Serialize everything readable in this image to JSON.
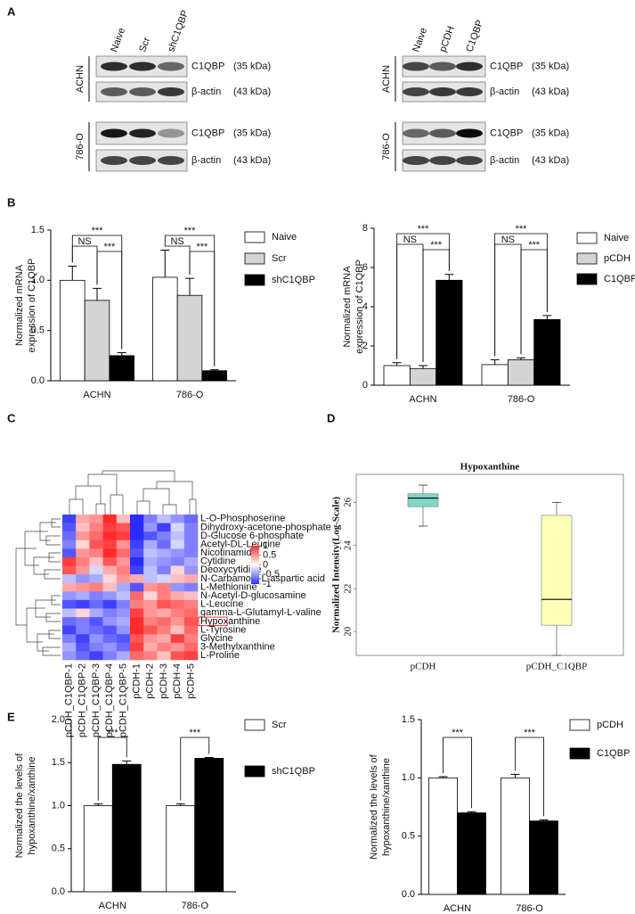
{
  "panel_labels": [
    "A",
    "B",
    "C",
    "D",
    "E"
  ],
  "blots": [
    {
      "lanes": [
        "Naive",
        "Scr",
        "shC1QBP"
      ],
      "rows": [
        {
          "cell_line": "ACHN",
          "proteins": [
            {
              "name": "C1QBP",
              "size": "(35 kDa)"
            },
            {
              "name": "β-actin",
              "size": "(43 kDa)"
            }
          ]
        },
        {
          "cell_line": "786-O",
          "proteins": [
            {
              "name": "C1QBP",
              "size": "(35 kDa)"
            },
            {
              "name": "β-actin",
              "size": "(43 kDa)"
            }
          ]
        }
      ]
    },
    {
      "lanes": [
        "Naive",
        "pCDH",
        "C1QBP"
      ],
      "rows": [
        {
          "cell_line": "ACHN",
          "proteins": [
            {
              "name": "C1QBP",
              "size": "(35 kDa)"
            },
            {
              "name": "β-actin",
              "size": "(43 kDa)"
            }
          ]
        },
        {
          "cell_line": "786-O",
          "proteins": [
            {
              "name": "C1QBP",
              "size": "(35 kDa)"
            },
            {
              "name": "β-actin",
              "size": "(43 kDa)"
            }
          ]
        }
      ]
    }
  ],
  "chart_data": [
    {
      "type": "bar",
      "ylabel": [
        "Normalized  mRNA",
        "expression  of C1QBP"
      ],
      "categories": [
        "ACHN",
        "786-O"
      ],
      "series": [
        {
          "name": "Naive",
          "color": "#ffffff",
          "values": [
            1.0,
            1.03
          ],
          "errors": [
            0.14,
            0.27
          ]
        },
        {
          "name": "Scr",
          "color": "#d4d4d4",
          "values": [
            0.8,
            0.85
          ],
          "errors": [
            0.12,
            0.17
          ]
        },
        {
          "name": "shC1QBP",
          "color": "#000000",
          "values": [
            0.25,
            0.1
          ],
          "errors": [
            0.03,
            0.01
          ]
        }
      ],
      "significance": [
        [
          "***",
          "NS",
          "***"
        ],
        [
          "***",
          "NS",
          "***"
        ]
      ],
      "ylim": [
        0,
        1.5
      ],
      "yticks": [
        {
          "value": 0,
          "label": "0.0"
        },
        0.5,
        {
          "value": 1,
          "label": "1.0"
        },
        1.5
      ]
    },
    {
      "type": "bar",
      "ylabel": [
        "Normalized mRNA",
        "expression of C1QBP"
      ],
      "categories": [
        "ACHN",
        "786-O"
      ],
      "series": [
        {
          "name": "Naive",
          "color": "#ffffff",
          "values": [
            1.0,
            1.05
          ],
          "errors": [
            0.15,
            0.25
          ]
        },
        {
          "name": "pCDH",
          "color": "#d4d4d4",
          "values": [
            0.85,
            1.3
          ],
          "errors": [
            0.15,
            0.1
          ]
        },
        {
          "name": "C1QBP",
          "color": "#000000",
          "values": [
            5.35,
            3.35
          ],
          "errors": [
            0.3,
            0.2
          ]
        }
      ],
      "significance": [
        [
          "***",
          "NS",
          "***"
        ],
        [
          "***",
          "NS",
          "***"
        ]
      ],
      "ylim": [
        0,
        8
      ],
      "yticks": [
        0,
        2,
        4,
        6,
        8
      ]
    },
    {
      "type": "heatmap",
      "rows": [
        "L-O-Phosphoserine",
        "Dihydroxy-acetone-phosphate",
        "D-Glucose 6-phosphate",
        "Acetyl-DL-Leucine",
        "Nicotinamide",
        "Cytidine",
        "Deoxycytidine",
        "N-Carbamoyl-L-aspartic acid",
        "L-Methionine",
        "N-Acetyl-D-glucosamine",
        "L-Leucine",
        "gamma-L-Glutamyl-L-valine",
        "Hypoxanthine",
        "L-Tyrosine",
        "Glycine",
        "3-Methylxanthine",
        "L-Proline"
      ],
      "columns": [
        "pCDH_C1QBP-1",
        "pCDH_C1QBP-2",
        "pCDH_C1QBP-3",
        "pCDH_C1QBP-4",
        "pCDH_C1QBP-5",
        "pCDH-1",
        "pCDH-2",
        "pCDH-3",
        "pCDH-4",
        "pCDH-5"
      ],
      "values": [
        [
          -0.9,
          0.4,
          0.5,
          1,
          0.3,
          -1,
          -0.6,
          -0.3,
          -0.5,
          -0.7
        ],
        [
          -0.8,
          0.3,
          0.6,
          0.9,
          0.8,
          -1,
          -0.5,
          -0.9,
          -0.2,
          -0.6
        ],
        [
          -0.7,
          0.5,
          0.7,
          1,
          0.9,
          -1,
          -0.8,
          -0.6,
          -0.3,
          -0.6
        ],
        [
          -0.6,
          0.2,
          0.8,
          0.9,
          0.5,
          -0.9,
          -0.4,
          -0.7,
          -0.2,
          -0.6
        ],
        [
          -0.8,
          0.5,
          0.6,
          1,
          0.7,
          -0.8,
          -0.3,
          -0.4,
          -0.5,
          -0.6
        ],
        [
          0.9,
          0.6,
          0.3,
          0.8,
          0.5,
          -1,
          -0.4,
          -0.5,
          -0.6,
          -0.4
        ],
        [
          0.8,
          0.5,
          -0.2,
          0.4,
          0.6,
          -0.9,
          -0.3,
          -0.6,
          0.2,
          -0.5
        ],
        [
          -0.3,
          -0.5,
          -0.4,
          0.2,
          0.5,
          0.4,
          -0.3,
          -0.2,
          0.3,
          0.4
        ],
        [
          0.4,
          0.5,
          0.6,
          0.3,
          -0.4,
          -0.8,
          0.5,
          0.6,
          -0.5,
          -0.6
        ],
        [
          -0.5,
          -0.4,
          -0.6,
          -0.5,
          -0.3,
          0.7,
          0.2,
          0.6,
          0.4,
          0.3
        ],
        [
          -0.8,
          -0.9,
          -0.7,
          -0.9,
          -0.6,
          0.6,
          0.5,
          0.8,
          0.7,
          0.6
        ],
        [
          -0.3,
          0.2,
          -0.4,
          -0.6,
          -0.5,
          0.9,
          0.5,
          0.4,
          0.6,
          0.7
        ],
        [
          -0.7,
          -0.6,
          -0.8,
          -0.5,
          -0.4,
          1,
          0.6,
          0.7,
          0.5,
          0.8
        ],
        [
          -0.9,
          -0.6,
          -0.7,
          -0.8,
          -0.5,
          1,
          0.8,
          0.6,
          0.3,
          0.7
        ],
        [
          -0.6,
          -0.9,
          -0.5,
          -0.7,
          -0.8,
          0.8,
          0.5,
          0.4,
          0.9,
          0.6
        ],
        [
          -0.4,
          -0.8,
          -0.6,
          -0.5,
          -0.7,
          0.9,
          0.4,
          0.6,
          0.5,
          0.7
        ],
        [
          -0.5,
          -0.7,
          -0.9,
          -0.6,
          -0.4,
          0.7,
          0.6,
          0.3,
          0.8,
          0.9
        ]
      ],
      "clim": [
        -1,
        1
      ],
      "colors": [
        "#2b2bff",
        "#ffffff",
        "#ff2b2b"
      ],
      "colorbar_ticks": [
        -1,
        -0.5,
        0,
        0.5,
        1
      ],
      "highlight_row": 12
    },
    {
      "type": "box",
      "title": "Hypoxanthine",
      "ylabel": "Normalized Intensity(Log-Scale)",
      "categories": [
        "pCDH",
        "pCDH_C1QBP"
      ],
      "colors": [
        "#7fd6c4",
        "#ffffb8"
      ],
      "boxes": [
        {
          "min": 24.9,
          "q1": 25.8,
          "median": 26.2,
          "q3": 26.4,
          "max": 26.8
        },
        {
          "min": 18.9,
          "q1": 20.3,
          "median": 21.5,
          "q3": 25.4,
          "max": 26.0
        }
      ],
      "ylim": [
        18.9,
        27.3
      ],
      "yticks": [
        20,
        22,
        24,
        26
      ]
    },
    {
      "type": "bar",
      "ylabel": [
        "Normalized the levels of",
        "hypoxanthine/xanthine"
      ],
      "categories": [
        "ACHN",
        "786-O"
      ],
      "series": [
        {
          "name": "Scr",
          "color": "#ffffff",
          "values": [
            1.0,
            1.0
          ],
          "errors": [
            0.02,
            0.02
          ]
        },
        {
          "name": "shC1QBP",
          "color": "#000000",
          "values": [
            1.48,
            1.55
          ],
          "errors": [
            0.04,
            0.01
          ]
        }
      ],
      "significance": [
        [
          "***"
        ],
        [
          "***"
        ]
      ],
      "ylim": [
        0,
        2
      ],
      "yticks": [
        {
          "value": 0,
          "label": "0.0"
        },
        0.5,
        {
          "value": 1,
          "label": "1.0"
        },
        1.5,
        {
          "value": 2,
          "label": "2.0"
        }
      ]
    },
    {
      "type": "bar",
      "ylabel": [
        "Normalized the levels of",
        "hypoxanthine/xanthine"
      ],
      "categories": [
        "ACHN",
        "786-O"
      ],
      "series": [
        {
          "name": "pCDH",
          "color": "#ffffff",
          "values": [
            1.0,
            1.0
          ],
          "errors": [
            0.01,
            0.03
          ]
        },
        {
          "name": "C1QBP",
          "color": "#000000",
          "values": [
            0.7,
            0.63
          ],
          "errors": [
            0.01,
            0.01
          ]
        }
      ],
      "significance": [
        [
          "***"
        ],
        [
          "***"
        ]
      ],
      "ylim": [
        0,
        1.5
      ],
      "yticks": [
        {
          "value": 0,
          "label": "0.0"
        },
        0.5,
        {
          "value": 1,
          "label": "1.0"
        },
        1.5
      ]
    }
  ]
}
